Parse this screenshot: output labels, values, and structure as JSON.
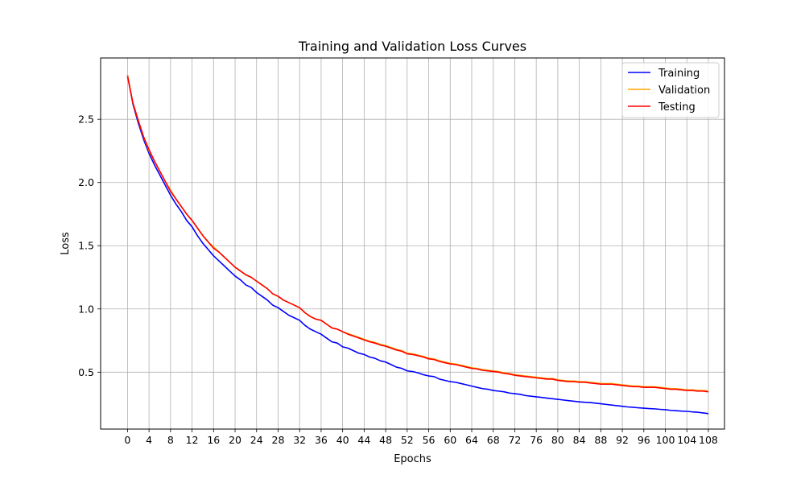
{
  "chart_data": {
    "type": "line",
    "title": "Training and Validation Loss Curves",
    "xlabel": "Epochs",
    "ylabel": "Loss",
    "xlim": [
      -5,
      111
    ],
    "ylim": [
      0.05,
      2.985
    ],
    "xticks": [
      0,
      4,
      8,
      12,
      16,
      20,
      24,
      28,
      32,
      36,
      40,
      44,
      48,
      52,
      56,
      60,
      64,
      68,
      72,
      76,
      80,
      84,
      88,
      92,
      96,
      100,
      104,
      108
    ],
    "yticks": [
      0.5,
      1.0,
      1.5,
      2.0,
      2.5
    ],
    "ytick_labels": [
      "0.5",
      "1.0",
      "1.5",
      "2.0",
      "2.5"
    ],
    "grid": true,
    "legend_position": "top-right",
    "x": [
      0,
      1,
      2,
      3,
      4,
      5,
      6,
      7,
      8,
      9,
      10,
      11,
      12,
      13,
      14,
      15,
      16,
      17,
      18,
      19,
      20,
      21,
      22,
      23,
      24,
      25,
      26,
      27,
      28,
      29,
      30,
      31,
      32,
      33,
      34,
      35,
      36,
      37,
      38,
      39,
      40,
      41,
      42,
      43,
      44,
      45,
      46,
      47,
      48,
      49,
      50,
      51,
      52,
      53,
      54,
      55,
      56,
      57,
      58,
      59,
      60,
      61,
      62,
      63,
      64,
      65,
      66,
      67,
      68,
      69,
      70,
      71,
      72,
      73,
      74,
      75,
      76,
      77,
      78,
      79,
      80,
      81,
      82,
      83,
      84,
      85,
      86,
      87,
      88,
      89,
      90,
      91,
      92,
      93,
      94,
      95,
      96,
      97,
      98,
      99,
      100,
      101,
      102,
      103,
      104,
      105,
      106,
      107,
      108
    ],
    "series": [
      {
        "name": "Training",
        "color": "#0000ff",
        "values": [
          2.85,
          2.62,
          2.47,
          2.34,
          2.23,
          2.14,
          2.06,
          1.98,
          1.9,
          1.83,
          1.77,
          1.7,
          1.65,
          1.58,
          1.52,
          1.47,
          1.42,
          1.38,
          1.34,
          1.3,
          1.26,
          1.23,
          1.19,
          1.17,
          1.13,
          1.1,
          1.07,
          1.03,
          1.01,
          0.98,
          0.95,
          0.93,
          0.91,
          0.87,
          0.84,
          0.82,
          0.8,
          0.77,
          0.74,
          0.73,
          0.7,
          0.69,
          0.67,
          0.65,
          0.64,
          0.62,
          0.61,
          0.59,
          0.58,
          0.56,
          0.54,
          0.53,
          0.51,
          0.505,
          0.495,
          0.48,
          0.47,
          0.465,
          0.445,
          0.435,
          0.425,
          0.42,
          0.41,
          0.4,
          0.39,
          0.38,
          0.37,
          0.365,
          0.355,
          0.35,
          0.345,
          0.335,
          0.33,
          0.325,
          0.315,
          0.31,
          0.305,
          0.3,
          0.295,
          0.29,
          0.285,
          0.28,
          0.275,
          0.27,
          0.265,
          0.262,
          0.26,
          0.255,
          0.25,
          0.245,
          0.24,
          0.235,
          0.23,
          0.225,
          0.222,
          0.218,
          0.215,
          0.212,
          0.21,
          0.206,
          0.203,
          0.198,
          0.195,
          0.192,
          0.19,
          0.186,
          0.183,
          0.178,
          0.172
        ]
      },
      {
        "name": "Validation",
        "color": "#ffa500",
        "values": [
          2.85,
          2.63,
          2.49,
          2.36,
          2.25,
          2.17,
          2.09,
          2.01,
          1.94,
          1.87,
          1.81,
          1.75,
          1.7,
          1.64,
          1.58,
          1.53,
          1.49,
          1.45,
          1.41,
          1.37,
          1.33,
          1.3,
          1.27,
          1.25,
          1.22,
          1.19,
          1.16,
          1.12,
          1.1,
          1.07,
          1.05,
          1.03,
          1.01,
          0.97,
          0.94,
          0.92,
          0.91,
          0.88,
          0.85,
          0.84,
          0.82,
          0.805,
          0.79,
          0.775,
          0.76,
          0.745,
          0.735,
          0.72,
          0.71,
          0.695,
          0.68,
          0.67,
          0.65,
          0.645,
          0.635,
          0.625,
          0.61,
          0.605,
          0.59,
          0.58,
          0.57,
          0.565,
          0.555,
          0.545,
          0.535,
          0.53,
          0.52,
          0.515,
          0.51,
          0.505,
          0.495,
          0.49,
          0.48,
          0.475,
          0.47,
          0.465,
          0.46,
          0.455,
          0.45,
          0.45,
          0.44,
          0.435,
          0.43,
          0.43,
          0.425,
          0.425,
          0.42,
          0.415,
          0.41,
          0.41,
          0.41,
          0.405,
          0.4,
          0.395,
          0.39,
          0.39,
          0.385,
          0.385,
          0.385,
          0.38,
          0.375,
          0.37,
          0.37,
          0.365,
          0.36,
          0.36,
          0.355,
          0.355,
          0.35
        ]
      },
      {
        "name": "Testing",
        "color": "#ff0000",
        "values": [
          2.84,
          2.63,
          2.49,
          2.36,
          2.26,
          2.17,
          2.09,
          2.01,
          1.93,
          1.87,
          1.81,
          1.75,
          1.7,
          1.64,
          1.58,
          1.53,
          1.48,
          1.45,
          1.41,
          1.37,
          1.33,
          1.3,
          1.27,
          1.25,
          1.22,
          1.19,
          1.16,
          1.12,
          1.1,
          1.07,
          1.05,
          1.03,
          1.01,
          0.97,
          0.94,
          0.92,
          0.91,
          0.88,
          0.85,
          0.84,
          0.82,
          0.8,
          0.785,
          0.77,
          0.755,
          0.74,
          0.73,
          0.715,
          0.705,
          0.69,
          0.675,
          0.665,
          0.645,
          0.64,
          0.63,
          0.62,
          0.605,
          0.6,
          0.585,
          0.575,
          0.565,
          0.56,
          0.55,
          0.54,
          0.53,
          0.525,
          0.515,
          0.51,
          0.505,
          0.5,
          0.49,
          0.485,
          0.475,
          0.47,
          0.465,
          0.46,
          0.455,
          0.45,
          0.445,
          0.445,
          0.435,
          0.43,
          0.425,
          0.425,
          0.42,
          0.42,
          0.415,
          0.41,
          0.405,
          0.405,
          0.405,
          0.4,
          0.395,
          0.39,
          0.385,
          0.385,
          0.38,
          0.38,
          0.38,
          0.375,
          0.37,
          0.365,
          0.365,
          0.36,
          0.355,
          0.355,
          0.35,
          0.35,
          0.345
        ]
      }
    ]
  }
}
